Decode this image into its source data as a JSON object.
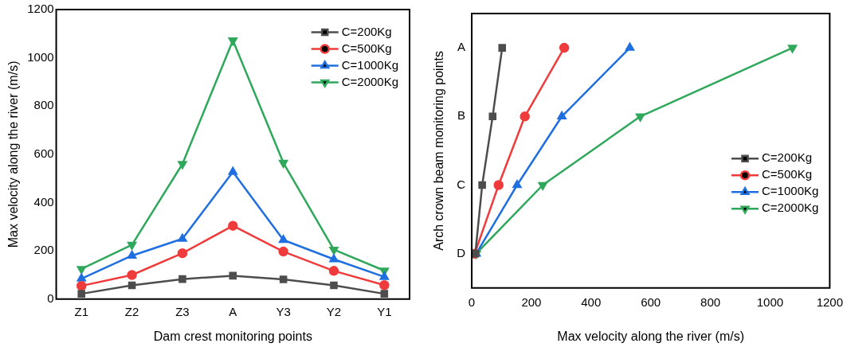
{
  "chart_data": [
    {
      "type": "line",
      "xlabel": "Dam crest monitoring points",
      "ylabel": "Max velocity along the river (m/s)",
      "categories": [
        "Z1",
        "Z2",
        "Z3",
        "A",
        "Y3",
        "Y2",
        "Y1"
      ],
      "ylim": [
        0,
        1200
      ],
      "yticks": [
        0,
        200,
        400,
        600,
        800,
        1000,
        1200
      ],
      "grid": false,
      "legend": "top right",
      "series": [
        {
          "name": "C=200Kg",
          "color": "#4d4d4d",
          "marker": "square",
          "values": [
            22,
            57,
            83,
            97,
            82,
            57,
            22
          ]
        },
        {
          "name": "C=500Kg",
          "color": "#ef3b3b",
          "marker": "circle",
          "values": [
            55,
            100,
            190,
            304,
            197,
            117,
            58
          ]
        },
        {
          "name": "C=1000Kg",
          "color": "#1f6fe0",
          "marker": "triangle",
          "values": [
            85,
            180,
            250,
            527,
            245,
            165,
            92
          ]
        },
        {
          "name": "C=2000Kg",
          "color": "#2fa85c",
          "marker": "triangle-down",
          "values": [
            125,
            225,
            560,
            1072,
            565,
            205,
            118
          ]
        }
      ]
    },
    {
      "type": "line",
      "orientation": "horizontal",
      "xlabel": "Max velocity along the river (m/s)",
      "ylabel": "Arch crown beam monitoring points",
      "categories": [
        "A",
        "B",
        "C",
        "D"
      ],
      "xlim": [
        0,
        1200
      ],
      "xticks": [
        0,
        200,
        400,
        600,
        800,
        1000,
        1200
      ],
      "grid": false,
      "legend": "right",
      "series": [
        {
          "name": "C=200Kg",
          "color": "#4d4d4d",
          "marker": "square",
          "values": [
            102,
            70,
            35,
            12
          ]
        },
        {
          "name": "C=500Kg",
          "color": "#ef3b3b",
          "marker": "circle",
          "values": [
            310,
            178,
            90,
            10
          ]
        },
        {
          "name": "C=1000Kg",
          "color": "#1f6fe0",
          "marker": "triangle",
          "values": [
            530,
            302,
            152,
            15
          ]
        },
        {
          "name": "C=2000Kg",
          "color": "#2fa85c",
          "marker": "triangle-down",
          "values": [
            1075,
            565,
            238,
            15
          ]
        }
      ]
    }
  ]
}
